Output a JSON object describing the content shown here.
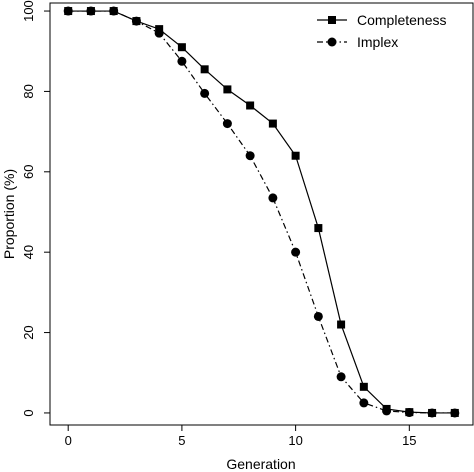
{
  "chart_data": {
    "type": "line",
    "xlabel": "Generation",
    "ylabel": "Proportion (%)",
    "xlim": [
      -0.8,
      17.8
    ],
    "ylim": [
      -3,
      102
    ],
    "x_ticks": [
      0,
      5,
      10,
      15
    ],
    "y_ticks": [
      0,
      20,
      40,
      60,
      80,
      100
    ],
    "x_tick_labels": [
      "0",
      "5",
      "10",
      "15"
    ],
    "y_tick_labels": [
      "0",
      "20",
      "40",
      "60",
      "80",
      "100"
    ],
    "grid": false,
    "legend_position": "top-right",
    "x": [
      0,
      1,
      2,
      3,
      4,
      5,
      6,
      7,
      8,
      9,
      10,
      11,
      12,
      13,
      14,
      15,
      16,
      17
    ],
    "series": [
      {
        "name": "Completeness",
        "marker": "square",
        "line_style": "solid",
        "values": [
          100,
          100,
          100,
          97.5,
          95.5,
          91,
          85.5,
          80.5,
          76.5,
          72,
          64,
          46,
          22,
          6.5,
          1,
          0.2,
          0,
          0
        ]
      },
      {
        "name": "Implex",
        "marker": "circle",
        "line_style": "dashdot",
        "values": [
          100,
          100,
          100,
          97.5,
          94.5,
          87.5,
          79.5,
          72,
          64,
          53.5,
          40,
          24,
          9,
          2.5,
          0.5,
          0.1,
          0,
          0
        ]
      }
    ]
  }
}
